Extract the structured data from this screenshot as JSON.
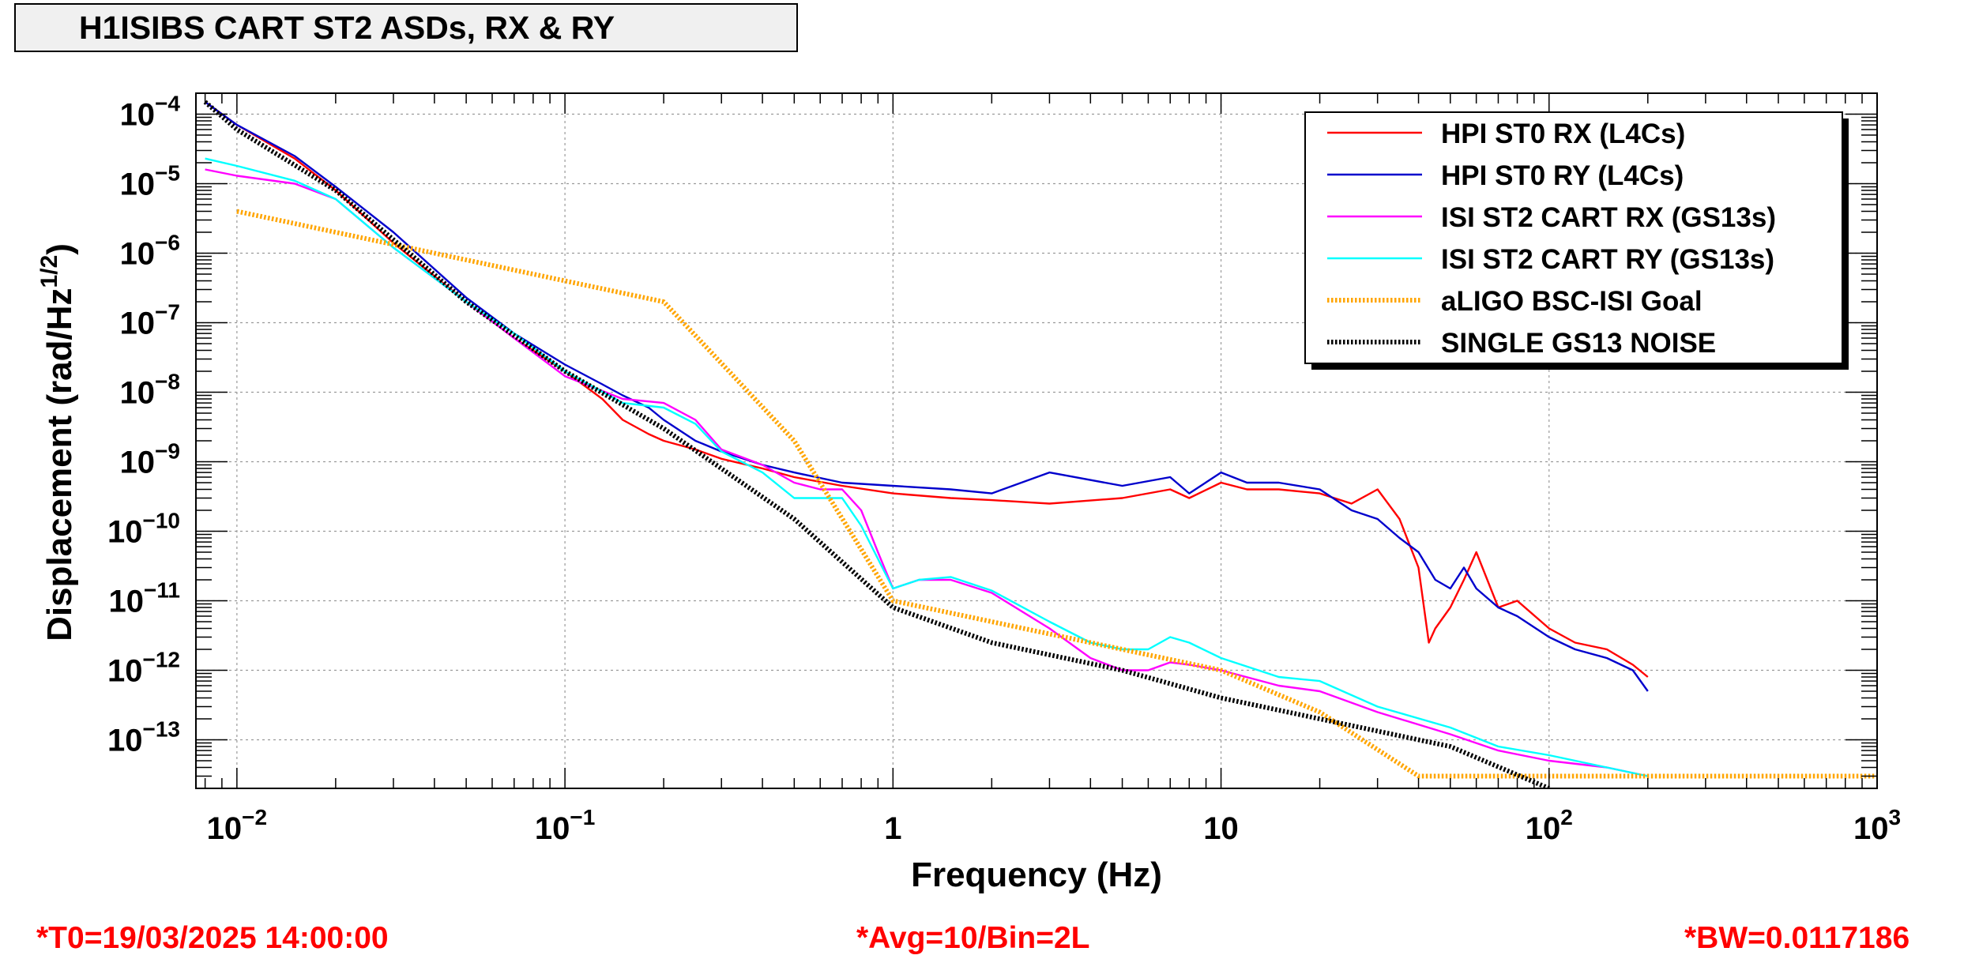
{
  "title": "H1ISIBS CART ST2 ASDs, RX & RY",
  "footer": {
    "t0": "*T0=19/03/2025 14:00:00",
    "avg": "*Avg=10/Bin=2L",
    "bw": "*BW=0.0117186"
  },
  "chart_data": {
    "type": "line",
    "xlabel": "Frequency (Hz)",
    "ylabel": "Displacement (rad/Hz^1/2)",
    "xscale": "log",
    "yscale": "log",
    "xlim": [
      0.0075,
      1000
    ],
    "ylim": [
      2e-14,
      0.0002
    ],
    "grid": true,
    "legend_position": "top-right",
    "xticks": [
      {
        "value": 0.01,
        "base": "10",
        "exp": "−2"
      },
      {
        "value": 0.1,
        "base": "10",
        "exp": "−1"
      },
      {
        "value": 1,
        "base": "1",
        "exp": ""
      },
      {
        "value": 10,
        "base": "10",
        "exp": ""
      },
      {
        "value": 100,
        "base": "10",
        "exp": "2"
      },
      {
        "value": 1000,
        "base": "10",
        "exp": "3"
      }
    ],
    "yticks": [
      {
        "value": 0.0001,
        "exp": "−4"
      },
      {
        "value": 1e-05,
        "exp": "−5"
      },
      {
        "value": 1e-06,
        "exp": "−6"
      },
      {
        "value": 1e-07,
        "exp": "−7"
      },
      {
        "value": 1e-08,
        "exp": "−8"
      },
      {
        "value": 1e-09,
        "exp": "−9"
      },
      {
        "value": 1e-10,
        "exp": "−10"
      },
      {
        "value": 1e-11,
        "exp": "−11"
      },
      {
        "value": 1e-12,
        "exp": "−12"
      },
      {
        "value": 1e-13,
        "exp": "−13"
      }
    ],
    "series": [
      {
        "name": "HPI ST0 RX (L4Cs)",
        "color": "#ff0000",
        "style": "solid",
        "x": [
          0.008,
          0.01,
          0.015,
          0.02,
          0.03,
          0.05,
          0.07,
          0.1,
          0.13,
          0.15,
          0.18,
          0.2,
          0.25,
          0.3,
          0.4,
          0.5,
          0.7,
          1,
          1.5,
          2,
          3,
          5,
          7,
          8,
          10,
          12,
          15,
          20,
          25,
          30,
          35,
          40,
          43,
          45,
          50,
          55,
          60,
          70,
          80,
          100,
          120,
          150,
          180,
          200
        ],
        "y": [
          0.00015,
          7e-05,
          2.3e-05,
          8e-06,
          1.4e-06,
          2e-07,
          6e-08,
          2e-08,
          8e-09,
          4e-09,
          2.5e-09,
          2e-09,
          1.5e-09,
          1.1e-09,
          8e-10,
          6e-10,
          4.5e-10,
          3.5e-10,
          3e-10,
          2.8e-10,
          2.5e-10,
          3e-10,
          4e-10,
          3e-10,
          5e-10,
          4e-10,
          4e-10,
          3.5e-10,
          2.5e-10,
          4e-10,
          1.5e-10,
          3e-11,
          2.5e-12,
          4e-12,
          8e-12,
          2e-11,
          5e-11,
          8e-12,
          1e-11,
          4e-12,
          2.5e-12,
          2e-12,
          1.2e-12,
          8e-13
        ]
      },
      {
        "name": "HPI ST0 RY (L4Cs)",
        "color": "#0000cc",
        "style": "solid",
        "x": [
          0.008,
          0.01,
          0.015,
          0.02,
          0.03,
          0.05,
          0.07,
          0.1,
          0.13,
          0.15,
          0.18,
          0.2,
          0.25,
          0.3,
          0.4,
          0.5,
          0.7,
          1,
          1.5,
          2,
          3,
          5,
          7,
          8,
          10,
          12,
          15,
          20,
          25,
          30,
          35,
          40,
          45,
          50,
          55,
          60,
          70,
          80,
          100,
          120,
          150,
          180,
          200
        ],
        "y": [
          0.00015,
          7e-05,
          2.5e-05,
          9e-06,
          2e-06,
          2.3e-07,
          7e-08,
          2.5e-08,
          1.3e-08,
          9e-09,
          6e-09,
          4e-09,
          2e-09,
          1.4e-09,
          9e-10,
          7e-10,
          5e-10,
          4.5e-10,
          4e-10,
          3.5e-10,
          7e-10,
          4.5e-10,
          6e-10,
          3.5e-10,
          7e-10,
          5e-10,
          5e-10,
          4e-10,
          2e-10,
          1.5e-10,
          8e-11,
          5e-11,
          2e-11,
          1.5e-11,
          3e-11,
          1.5e-11,
          8e-12,
          6e-12,
          3e-12,
          2e-12,
          1.5e-12,
          1e-12,
          5e-13
        ]
      },
      {
        "name": "ISI ST2 CART RX (GS13s)",
        "color": "#ff00ff",
        "style": "solid",
        "x": [
          0.008,
          0.01,
          0.015,
          0.02,
          0.03,
          0.05,
          0.07,
          0.1,
          0.15,
          0.2,
          0.25,
          0.3,
          0.4,
          0.5,
          0.6,
          0.7,
          0.8,
          0.9,
          1,
          1.2,
          1.5,
          2,
          3,
          4,
          5,
          6,
          7,
          8,
          10,
          15,
          20,
          30,
          50,
          70,
          100,
          150,
          200
        ],
        "y": [
          1.6e-05,
          1.3e-05,
          1e-05,
          6e-06,
          1.2e-06,
          2e-07,
          6e-08,
          1.7e-08,
          8e-09,
          7e-09,
          4e-09,
          1.5e-09,
          9e-10,
          5e-10,
          4e-10,
          4e-10,
          2e-10,
          5e-11,
          1.5e-11,
          2e-11,
          2e-11,
          1.3e-11,
          4e-12,
          1.5e-12,
          1e-12,
          1e-12,
          1.3e-12,
          1.2e-12,
          1e-12,
          6e-13,
          5e-13,
          2.5e-13,
          1.2e-13,
          7e-14,
          5e-14,
          4e-14,
          3e-14
        ]
      },
      {
        "name": "ISI ST2 CART RY (GS13s)",
        "color": "#00ffff",
        "style": "solid",
        "x": [
          0.008,
          0.01,
          0.015,
          0.02,
          0.03,
          0.05,
          0.07,
          0.1,
          0.15,
          0.2,
          0.25,
          0.3,
          0.4,
          0.5,
          0.6,
          0.7,
          0.8,
          0.9,
          1,
          1.2,
          1.5,
          2,
          3,
          4,
          5,
          6,
          7,
          8,
          10,
          15,
          20,
          30,
          50,
          70,
          100,
          150,
          200
        ],
        "y": [
          2.3e-05,
          1.8e-05,
          1.1e-05,
          6e-06,
          1.2e-06,
          2e-07,
          7e-08,
          2e-08,
          7e-09,
          6e-09,
          3.5e-09,
          1.4e-09,
          7e-10,
          3e-10,
          3e-10,
          3e-10,
          1.2e-10,
          4e-11,
          1.5e-11,
          2e-11,
          2.2e-11,
          1.4e-11,
          5e-12,
          2.5e-12,
          2e-12,
          2e-12,
          3e-12,
          2.5e-12,
          1.5e-12,
          8e-13,
          7e-13,
          3e-13,
          1.5e-13,
          8e-14,
          6e-14,
          4e-14,
          3e-14
        ]
      },
      {
        "name": "aLIGO BSC-ISI Goal",
        "color": "#ffa500",
        "style": "dotted",
        "x": [
          0.01,
          0.02,
          0.05,
          0.1,
          0.2,
          0.5,
          1,
          2,
          5,
          10,
          20,
          40,
          100,
          1000
        ],
        "y": [
          4e-06,
          2e-06,
          8e-07,
          4e-07,
          2e-07,
          2e-09,
          1e-11,
          5e-12,
          2e-12,
          1e-12,
          2.5e-13,
          3e-14,
          3e-14,
          3e-14
        ]
      },
      {
        "name": "SINGLE GS13 NOISE",
        "color": "#000000",
        "style": "dotted",
        "x": [
          0.008,
          0.01,
          0.02,
          0.05,
          0.1,
          0.2,
          0.5,
          1,
          2,
          5,
          10,
          20,
          50,
          100
        ],
        "y": [
          0.00015,
          6e-05,
          8e-06,
          2e-07,
          2e-08,
          3e-09,
          1.5e-10,
          8e-12,
          2.5e-12,
          1e-12,
          4e-13,
          2e-13,
          8e-14,
          2e-14
        ]
      }
    ]
  }
}
